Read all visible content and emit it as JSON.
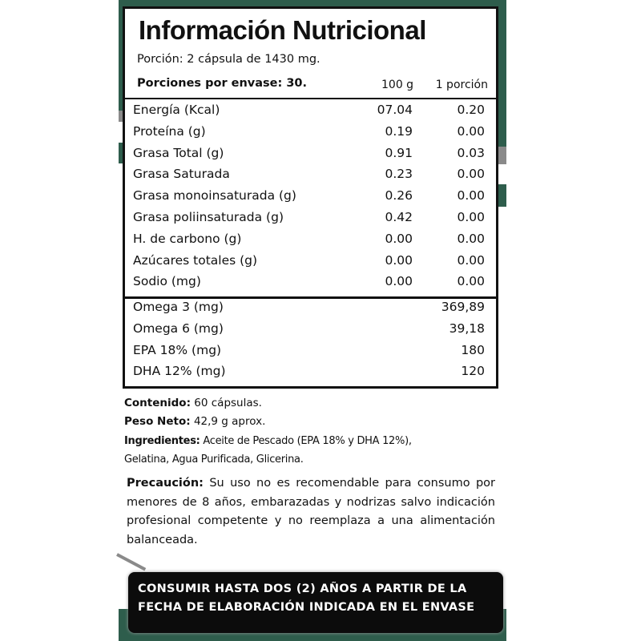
{
  "title": "Información Nutricional",
  "portion": "Porción: 2 cápsula de 1430 mg.",
  "servings": "Porciones por envase: 30.",
  "col_100g": "100 g",
  "col_portion": "1 porción",
  "nutrients": [
    {
      "label": "Energía (Kcal)",
      "per100": "07.04",
      "portion": "0.20"
    },
    {
      "label": "Proteína (g)",
      "per100": "0.19",
      "portion": "0.00"
    },
    {
      "label": "Grasa Total (g)",
      "per100": "0.91",
      "portion": "0.03"
    },
    {
      "label": "Grasa Saturada",
      "per100": "0.23",
      "portion": "0.00"
    },
    {
      "label": "Grasa monoinsaturada (g)",
      "per100": "0.26",
      "portion": "0.00"
    },
    {
      "label": "Grasa poliinsaturada (g)",
      "per100": "0.42",
      "portion": "0.00"
    },
    {
      "label": "H. de carbono (g)",
      "per100": "0.00",
      "portion": "0.00"
    },
    {
      "label": "Azúcares totales (g)",
      "per100": "0.00",
      "portion": "0.00"
    },
    {
      "label": "Sodio (mg)",
      "per100": "0.00",
      "portion": "0.00"
    }
  ],
  "fatty_acids": [
    {
      "label": "Omega 3 (mg)",
      "portion": "369,89"
    },
    {
      "label": "Omega 6 (mg)",
      "portion": "39,18"
    },
    {
      "label": "EPA 18% (mg)",
      "portion": "180"
    },
    {
      "label": "DHA 12% (mg)",
      "portion": "120"
    }
  ],
  "contenido": {
    "label": "Contenido:",
    "value": " 60 cápsulas."
  },
  "peso": {
    "label": "Peso Neto:",
    "value": " 42,9 g aprox."
  },
  "ingredientes": {
    "label": "Ingredientes:",
    "value": " Aceite de Pescado (EPA 18% y DHA 12%),",
    "value2": "Gelatina, Agua Purificada, Glicerina."
  },
  "precaucion": {
    "label": "Precaución:",
    "value": " Su uso no es recomendable para consumo por menores de 8 años, embarazadas y nodrizas salvo indicación profesional competente y no reemplaza a una alimentación balanceada."
  },
  "banner": {
    "line1": "CONSUMIR HASTA DOS (2) AÑOS A PARTIR DE LA",
    "line2": "FECHA DE ELABORACIÓN INDICADA EN EL ENVASE"
  },
  "colors": {
    "green": "#2e5d4c",
    "banner": "#0c0c0c"
  }
}
